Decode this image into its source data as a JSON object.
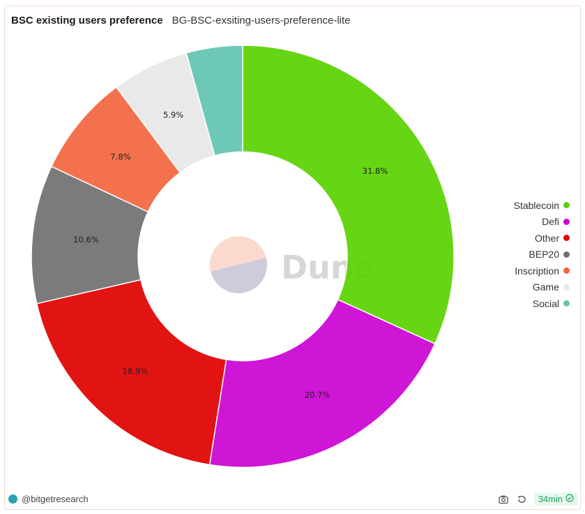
{
  "header": {
    "title": "BSC existing users preference",
    "subtitle": "BG-BSC-exsiting-users-preference-lite"
  },
  "watermark": {
    "text": "Dune"
  },
  "chart_data": {
    "type": "pie",
    "donut": true,
    "categories": [
      "Stablecoin",
      "Defi",
      "Other",
      "BEP20",
      "Inscription",
      "Game",
      "Social"
    ],
    "values": [
      31.8,
      20.7,
      18.9,
      10.6,
      7.8,
      5.9,
      4.3
    ],
    "labels": [
      "31.8%",
      "20.7%",
      "18.9%",
      "10.6%",
      "7.8%",
      "5.9%",
      ""
    ],
    "colors": [
      "#5ad201",
      "#cc02d2",
      "#e00000",
      "#707070",
      "#f4653e",
      "#e8e8e8",
      "#62c4b1"
    ],
    "legend_position": "right"
  },
  "footer": {
    "author": "@bitgetresearch",
    "refresh_age": "34min",
    "icons": [
      "camera-icon",
      "refresh-icon",
      "check-circle-icon"
    ]
  }
}
